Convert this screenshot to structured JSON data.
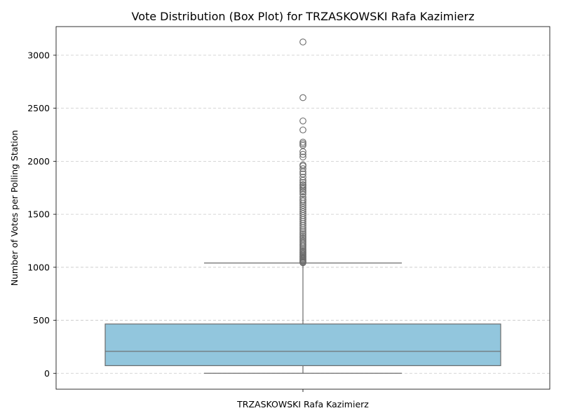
{
  "chart_data": {
    "type": "box",
    "title": "Vote Distribution (Box Plot) for TRZASKOWSKI Rafa Kazimierz",
    "xlabel": "",
    "ylabel": "Number of Votes per Polling Station",
    "categories": [
      "TRZASKOWSKI Rafa Kazimierz"
    ],
    "ylim": [
      -150,
      3270
    ],
    "yticks": [
      0,
      500,
      1000,
      1500,
      2000,
      2500,
      3000
    ],
    "grid": "y-dashed",
    "box": {
      "whisker_low": 0,
      "q1": 72,
      "median": 207,
      "q3": 465,
      "whisker_high": 1040
    },
    "outliers": [
      1043,
      1050,
      1058,
      1066,
      1075,
      1084,
      1093,
      1102,
      1112,
      1122,
      1133,
      1144,
      1155,
      1167,
      1180,
      1193,
      1206,
      1220,
      1234,
      1248,
      1263,
      1278,
      1294,
      1310,
      1326,
      1343,
      1360,
      1378,
      1396,
      1414,
      1432,
      1450,
      1468,
      1487,
      1506,
      1525,
      1545,
      1565,
      1585,
      1605,
      1625,
      1640,
      1660,
      1690,
      1710,
      1725,
      1740,
      1755,
      1770,
      1780,
      1800,
      1820,
      1850,
      1880,
      1900,
      1930,
      1955,
      1965,
      2040,
      2065,
      2090,
      2150,
      2165,
      2180,
      2295,
      2380,
      2600,
      3125
    ],
    "colors": {
      "box_fill": "#92c6dd",
      "line": "#6b6b6b",
      "grid": "#c8c8c8",
      "frame": "#000000"
    }
  }
}
